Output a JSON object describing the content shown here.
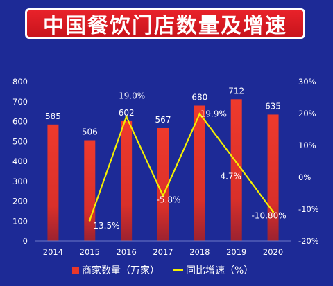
{
  "title": "中国餐饮门店数量及增速",
  "legend": {
    "bar_label": "商家数量（万家）",
    "line_label": "同比增速（%）"
  },
  "colors": {
    "background": "#1d2a96",
    "bar": "#e8372b",
    "line": "#f5f000",
    "title_bg": "#d81c22"
  },
  "chart_data": {
    "type": "bar",
    "categories": [
      "2014",
      "2015",
      "2016",
      "2017",
      "2018",
      "2019",
      "2020"
    ],
    "series": [
      {
        "name": "商家数量（万家）",
        "type": "bar",
        "axis": "left",
        "values": [
          585,
          506,
          602,
          567,
          680,
          712,
          635
        ],
        "labels": [
          "585",
          "506",
          "602",
          "567",
          "680",
          "712",
          "635"
        ]
      },
      {
        "name": "同比增速（%）",
        "type": "line",
        "axis": "right",
        "values": [
          null,
          -13.5,
          19.0,
          -5.8,
          19.9,
          4.7,
          -10.8
        ],
        "labels": [
          "",
          "-13.5%",
          "19.0%",
          "-5.8%",
          "19.9%",
          "4.7%",
          "-10.80%"
        ]
      }
    ],
    "ylim_left": [
      0,
      800
    ],
    "yticks_left": [
      "800",
      "700",
      "600",
      "500",
      "400",
      "300",
      "200",
      "100",
      "0"
    ],
    "ylim_right": [
      -20,
      30
    ],
    "yticks_right": [
      "30%",
      "20%",
      "10%",
      "0%",
      "-10%",
      "-20%"
    ]
  }
}
